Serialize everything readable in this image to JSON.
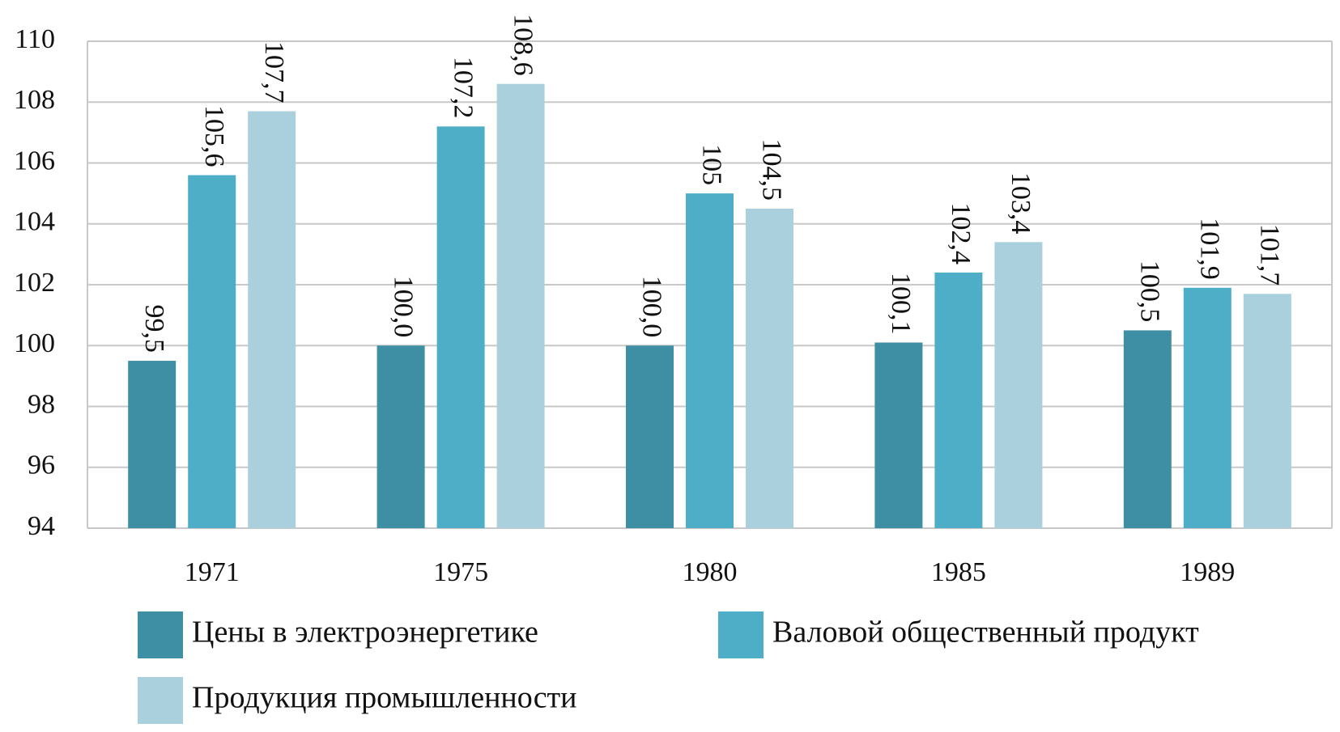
{
  "chart_data": {
    "type": "bar",
    "categories": [
      "1971",
      "1975",
      "1980",
      "1985",
      "1989"
    ],
    "series": [
      {
        "name": "Цены в электроэнергетике",
        "color": "#3e8fa3",
        "values": [
          99.5,
          100.0,
          100.0,
          100.1,
          100.5
        ],
        "value_labels": [
          "99,5",
          "100,0",
          "100,0",
          "100,1",
          "100,5"
        ]
      },
      {
        "name": "Валовой общественный продукт",
        "color": "#4eadc7",
        "values": [
          105.6,
          107.2,
          105,
          102.4,
          101.9
        ],
        "value_labels": [
          "105,6",
          "107,2",
          "105",
          "102,4",
          "101,9"
        ]
      },
      {
        "name": "Продукция промышленности",
        "color": "#a9d0dc",
        "values": [
          107.7,
          108.6,
          104.5,
          103.4,
          101.7
        ],
        "value_labels": [
          "107,7",
          "108,6",
          "104,5",
          "103,4",
          "101,7"
        ]
      }
    ],
    "ylim": [
      94,
      110
    ],
    "yticks": [
      94,
      96,
      98,
      100,
      102,
      104,
      106,
      108,
      110
    ],
    "grid": true
  }
}
